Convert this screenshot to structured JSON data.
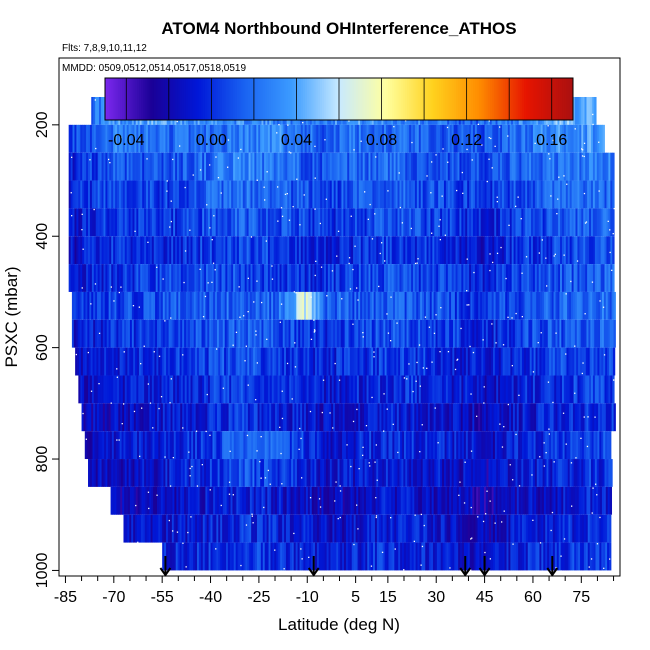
{
  "chart_data": {
    "type": "heatmap",
    "title": "ATOM4 Northbound OHInterference_ATHOS",
    "subtitle_flights": "Flts: 7,8,9,10,11,12",
    "subtitle_dates": "MMDD: 0509,0512,0514,0517,0518,0519",
    "xlabel": "Latitude (deg N)",
    "ylabel": "PSXC (mbar)",
    "xlim": [
      -87,
      87
    ],
    "ylim": [
      1010,
      80
    ],
    "x_ticks": [
      -85,
      -70,
      -55,
      -40,
      -25,
      -10,
      5,
      15,
      30,
      45,
      60,
      75
    ],
    "x_tick_labels": [
      "-85",
      "-70",
      "-55",
      "-40",
      "-25",
      "-10",
      "5",
      "15",
      "30",
      "45",
      "60",
      "75"
    ],
    "y_ticks": [
      200,
      400,
      600,
      800,
      1000
    ],
    "y_tick_labels": [
      "200",
      "400",
      "600",
      "800",
      "1000"
    ],
    "colorbar": {
      "range": [
        -0.05,
        0.17
      ],
      "ticks": [
        -0.04,
        0.0,
        0.04,
        0.08,
        0.12,
        0.16
      ],
      "tick_labels": [
        "-0.04",
        "0.00",
        "0.04",
        "0.08",
        "0.12",
        "0.16"
      ],
      "colors": [
        "#7b28ee",
        "#1a0096",
        "#0018d8",
        "#1a64f2",
        "#3c9cff",
        "#c8eaff",
        "#ffffa0",
        "#ffd21e",
        "#ff8c00",
        "#e61400",
        "#aa1010"
      ]
    },
    "pressure_bins": [
      175,
      225,
      275,
      325,
      375,
      425,
      475,
      525,
      575,
      625,
      675,
      725,
      775,
      825,
      875,
      925,
      975
    ],
    "bin_lat_ranges": [
      [
        -77,
        79
      ],
      [
        -84,
        82
      ],
      [
        -84,
        85
      ],
      [
        -84,
        85
      ],
      [
        -84,
        85
      ],
      [
        -84,
        85
      ],
      [
        -84,
        85
      ],
      [
        -83,
        85
      ],
      [
        -83,
        85
      ],
      [
        -82,
        85
      ],
      [
        -81,
        85
      ],
      [
        -80,
        85
      ],
      [
        -79,
        84
      ],
      [
        -78,
        84
      ],
      [
        -71,
        84
      ],
      [
        -67,
        84
      ],
      [
        -55,
        84
      ]
    ],
    "bin_profiles": [
      [
        0.01,
        0.035,
        0.04,
        0.035,
        0.03,
        0.03,
        0.025,
        0.03,
        0.035,
        0.03,
        0.025,
        0.015,
        0.02,
        0.03,
        0.04,
        0.05
      ],
      [
        0.0,
        0.025,
        0.02,
        0.02,
        0.025,
        0.03,
        0.02,
        0.015,
        0.02,
        0.02,
        0.015,
        0.01,
        0.01,
        0.02,
        0.03,
        0.035
      ],
      [
        -0.01,
        0.015,
        0.01,
        0.02,
        0.03,
        0.02,
        0.015,
        0.01,
        0.015,
        0.02,
        0.01,
        0.01,
        0.005,
        0.015,
        0.02,
        0.025
      ],
      [
        -0.005,
        0.01,
        0.005,
        0.015,
        0.02,
        0.015,
        0.01,
        0.005,
        0.01,
        0.015,
        0.01,
        0.005,
        0.0,
        0.01,
        0.015,
        0.02
      ],
      [
        -0.01,
        0.005,
        0.0,
        0.01,
        0.015,
        0.01,
        0.005,
        0.0,
        0.005,
        0.01,
        0.005,
        0.0,
        -0.005,
        0.005,
        0.01,
        0.015
      ],
      [
        -0.015,
        0.0,
        -0.005,
        0.005,
        0.01,
        0.005,
        0.0,
        -0.005,
        0.0,
        0.005,
        0.0,
        -0.01,
        -0.01,
        0.0,
        0.005,
        0.01
      ],
      [
        -0.01,
        0.0,
        0.005,
        0.01,
        0.01,
        0.005,
        0.0,
        0.0,
        0.005,
        0.01,
        0.005,
        0.0,
        -0.005,
        0.005,
        0.01,
        0.015
      ],
      [
        -0.005,
        0.005,
        0.01,
        0.015,
        0.02,
        0.015,
        0.07,
        0.02,
        0.01,
        0.015,
        0.01,
        0.005,
        0.0,
        0.01,
        0.015,
        0.02
      ],
      [
        -0.01,
        0.0,
        0.005,
        0.01,
        0.015,
        0.01,
        0.005,
        0.0,
        0.005,
        0.01,
        0.005,
        0.0,
        -0.005,
        0.005,
        0.01,
        0.015
      ],
      [
        -0.015,
        -0.005,
        0.0,
        0.005,
        0.01,
        0.005,
        0.0,
        -0.005,
        0.0,
        0.005,
        0.0,
        -0.005,
        -0.01,
        0.0,
        0.005,
        0.01
      ],
      [
        -0.02,
        -0.01,
        -0.005,
        0.0,
        0.005,
        0.0,
        -0.005,
        -0.01,
        -0.005,
        0.0,
        -0.005,
        -0.01,
        -0.015,
        -0.005,
        0.0,
        0.005
      ],
      [
        -0.02,
        -0.015,
        -0.01,
        -0.005,
        0.0,
        -0.005,
        -0.01,
        -0.015,
        -0.01,
        -0.005,
        -0.01,
        -0.015,
        -0.02,
        -0.01,
        -0.005,
        0.0
      ],
      [
        -0.015,
        -0.01,
        -0.005,
        0.0,
        0.02,
        0.01,
        0.0,
        -0.01,
        -0.005,
        0.0,
        -0.005,
        -0.01,
        -0.015,
        -0.005,
        0.0,
        0.005
      ],
      [
        -0.02,
        -0.015,
        -0.01,
        0.0,
        0.01,
        0.005,
        -0.005,
        -0.01,
        -0.01,
        -0.005,
        -0.01,
        -0.015,
        -0.02,
        -0.01,
        -0.005,
        0.0
      ],
      [
        -0.025,
        -0.02,
        -0.015,
        -0.01,
        -0.005,
        -0.01,
        -0.015,
        -0.02,
        -0.015,
        -0.01,
        -0.015,
        -0.02,
        -0.025,
        -0.015,
        -0.01,
        -0.005
      ],
      [
        -0.02,
        -0.015,
        -0.01,
        -0.005,
        0.0,
        -0.005,
        -0.01,
        -0.015,
        -0.01,
        -0.005,
        -0.01,
        -0.015,
        -0.02,
        -0.01,
        -0.005,
        0.0
      ],
      [
        -0.015,
        -0.01,
        -0.005,
        0.0,
        0.005,
        0.0,
        -0.005,
        -0.01,
        -0.005,
        0.0,
        -0.005,
        -0.01,
        -0.015,
        -0.005,
        0.0,
        0.005
      ]
    ],
    "profile_lats": [
      -85,
      -70,
      -55,
      -40,
      -30,
      -20,
      -10,
      -5,
      5,
      15,
      30,
      40,
      45,
      55,
      65,
      80
    ],
    "arrow_latitudes": [
      -54,
      -8,
      39,
      45,
      66
    ]
  }
}
